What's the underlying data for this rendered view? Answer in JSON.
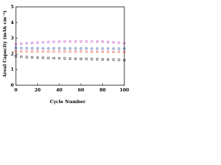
{
  "chart_data": {
    "type": "scatter",
    "xlabel": "Cycle Number",
    "ylabel": "Areal Capacity (mAh cm⁻²)",
    "x": [
      0,
      5,
      10,
      15,
      20,
      25,
      30,
      35,
      40,
      45,
      50,
      55,
      60,
      65,
      70,
      75,
      80,
      85,
      90,
      95,
      100
    ],
    "series": [
      {
        "color": "#c040c0",
        "marker": "circle",
        "values": [
          2.62,
          2.65,
          2.68,
          2.7,
          2.72,
          2.74,
          2.76,
          2.77,
          2.78,
          2.79,
          2.8,
          2.8,
          2.8,
          2.8,
          2.8,
          2.79,
          2.78,
          2.76,
          2.74,
          2.72,
          2.68
        ]
      },
      {
        "color": "#3050b0",
        "marker": "circle",
        "values": [
          2.38,
          2.37,
          2.36,
          2.36,
          2.35,
          2.35,
          2.35,
          2.35,
          2.35,
          2.35,
          2.35,
          2.35,
          2.35,
          2.35,
          2.34,
          2.34,
          2.34,
          2.34,
          2.34,
          2.33,
          2.33
        ]
      },
      {
        "color": "#e05040",
        "marker": "circle",
        "values": [
          2.16,
          2.15,
          2.15,
          2.15,
          2.15,
          2.15,
          2.15,
          2.15,
          2.15,
          2.15,
          2.15,
          2.15,
          2.15,
          2.14,
          2.14,
          2.14,
          2.14,
          2.13,
          2.13,
          2.13,
          2.12
        ]
      },
      {
        "color": "#222222",
        "marker": "square",
        "values": [
          1.85,
          1.82,
          1.8,
          1.78,
          1.76,
          1.75,
          1.74,
          1.73,
          1.72,
          1.71,
          1.7,
          1.69,
          1.68,
          1.68,
          1.67,
          1.66,
          1.65,
          1.64,
          1.63,
          1.62,
          1.6
        ]
      }
    ],
    "xlim": [
      0,
      100
    ],
    "xticks": [
      0,
      20,
      40,
      60,
      80,
      100
    ],
    "ylim": [
      0,
      5
    ],
    "yticks": [
      0,
      1,
      2,
      3,
      4,
      5
    ]
  }
}
